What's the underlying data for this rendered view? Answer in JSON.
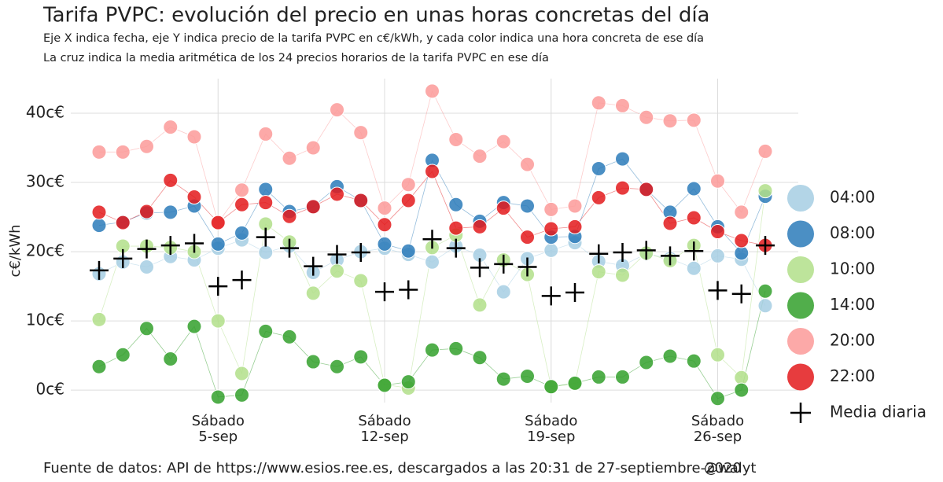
{
  "chart_data": {
    "type": "scatter",
    "title": "Tarifa PVPC: evolución del precio en unas horas concretas del día",
    "subtitle": "Eje X indica fecha, eje Y indica precio de la tarifa PVPC en c€/kWh, y cada color indica una hora concreta de ese día",
    "subtitle2": "La cruz indica la media aritmética de los 24 precios horarios de la tarifa PVPC en ese día",
    "y_label": "c€/kWh",
    "caption": "Fuente de datos: API de https://www.esios.ree.es, descargados a las 20:31 de 27-septiembre-2020",
    "credit": "@walyt",
    "x": [
      "31-ago",
      "1-sep",
      "2-sep",
      "3-sep",
      "4-sep",
      "5-sep",
      "6-sep",
      "7-sep",
      "8-sep",
      "9-sep",
      "10-sep",
      "11-sep",
      "12-sep",
      "13-sep",
      "14-sep",
      "15-sep",
      "16-sep",
      "17-sep",
      "18-sep",
      "19-sep",
      "20-sep",
      "21-sep",
      "22-sep",
      "23-sep",
      "24-sep",
      "25-sep",
      "26-sep",
      "27-sep",
      "28-sep"
    ],
    "xticks": [
      {
        "value": "5-sep",
        "label": [
          "Sábado",
          "5-sep"
        ]
      },
      {
        "value": "12-sep",
        "label": [
          "Sábado",
          "12-sep"
        ]
      },
      {
        "value": "19-sep",
        "label": [
          "Sábado",
          "19-sep"
        ]
      },
      {
        "value": "26-sep",
        "label": [
          "Sábado",
          "26-sep"
        ]
      }
    ],
    "ylim": [
      -1.8,
      45
    ],
    "yticks": [
      {
        "value": 0,
        "label": "0c€"
      },
      {
        "value": 10,
        "label": "10c€"
      },
      {
        "value": 20,
        "label": "20c€"
      },
      {
        "value": 30,
        "label": "30c€"
      },
      {
        "value": 40,
        "label": "40c€"
      }
    ],
    "grid": true,
    "series": [
      {
        "name": "04:00",
        "color": "#a6cee3",
        "values": [
          16.8,
          18.5,
          17.8,
          19.3,
          18.8,
          20.5,
          21.7,
          19.9,
          20.8,
          17.0,
          18.8,
          20.0,
          20.5,
          19.6,
          18.5,
          20.8,
          19.5,
          14.2,
          19.0,
          20.2,
          21.3,
          18.6,
          18.0,
          19.7,
          19.0,
          17.6,
          19.4,
          18.9,
          12.2
        ]
      },
      {
        "name": "08:00",
        "color": "#2b7bba",
        "values": [
          23.8,
          24.3,
          25.6,
          25.7,
          26.6,
          21.1,
          22.7,
          29.0,
          25.8,
          26.5,
          29.4,
          27.4,
          21.1,
          20.1,
          33.2,
          26.8,
          24.4,
          27.1,
          26.6,
          22.1,
          22.2,
          32.0,
          33.4,
          29.0,
          25.7,
          29.1,
          23.6,
          19.8,
          28.0
        ]
      },
      {
        "name": "10:00",
        "color": "#b2df8a",
        "values": [
          10.2,
          20.8,
          20.8,
          20.6,
          20.0,
          10.0,
          2.4,
          24.0,
          21.4,
          14.0,
          17.2,
          15.8,
          0.8,
          0.3,
          20.6,
          22.4,
          12.3,
          18.8,
          16.7,
          0.5,
          0.9,
          17.1,
          16.6,
          19.8,
          18.7,
          20.9,
          5.1,
          1.8,
          28.8
        ]
      },
      {
        "name": "14:00",
        "color": "#33a02c",
        "values": [
          3.4,
          5.1,
          8.9,
          4.5,
          9.2,
          -1.0,
          -0.7,
          8.5,
          7.7,
          4.1,
          3.4,
          4.8,
          0.7,
          1.2,
          5.8,
          6.0,
          4.7,
          1.6,
          2.0,
          0.5,
          1.0,
          1.9,
          1.9,
          4.0,
          4.9,
          4.2,
          -1.2,
          0.0,
          14.3
        ]
      },
      {
        "name": "20:00",
        "color": "#fb9a99",
        "values": [
          34.4,
          34.4,
          35.2,
          38.0,
          36.6,
          24.2,
          28.9,
          37.0,
          33.5,
          35.0,
          40.5,
          37.2,
          26.3,
          29.7,
          43.2,
          36.2,
          33.8,
          35.9,
          32.6,
          26.1,
          26.6,
          41.5,
          41.1,
          39.4,
          38.9,
          39.0,
          30.2,
          25.7,
          34.5
        ]
      },
      {
        "name": "22:00",
        "color": "#e31a1c",
        "values": [
          25.7,
          24.2,
          25.8,
          30.3,
          27.9,
          24.2,
          26.8,
          27.1,
          25.1,
          26.5,
          28.3,
          27.4,
          23.9,
          27.4,
          31.6,
          23.4,
          23.6,
          26.3,
          22.1,
          23.3,
          23.6,
          27.8,
          29.2,
          29.0,
          24.1,
          24.9,
          22.9,
          21.6,
          20.9
        ]
      },
      {
        "name": "Media diaria",
        "color": "#000000",
        "marker": "cross",
        "values": [
          17.3,
          19.0,
          20.4,
          20.9,
          21.2,
          15.0,
          15.9,
          22.1,
          20.5,
          17.9,
          19.6,
          19.9,
          14.2,
          14.5,
          21.8,
          20.5,
          17.7,
          18.2,
          17.8,
          13.6,
          14.1,
          19.7,
          19.9,
          20.2,
          19.4,
          20.1,
          14.4,
          13.9,
          20.9
        ]
      }
    ]
  }
}
